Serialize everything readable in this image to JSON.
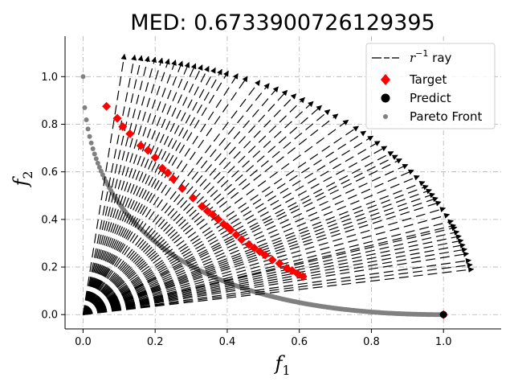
{
  "chart_data": {
    "type": "scatter",
    "title": "MED: 0.6733900726129395",
    "xlabel": "f",
    "xlabel_sub": "1",
    "ylabel": "f",
    "ylabel_sub": "2",
    "xlim": [
      -0.05,
      1.16
    ],
    "ylim": [
      -0.06,
      1.17
    ],
    "xticks": [
      "0.0",
      "0.2",
      "0.4",
      "0.6",
      "0.8",
      "1.0"
    ],
    "yticks": [
      "0.0",
      "0.2",
      "0.4",
      "0.6",
      "0.8",
      "1.0"
    ],
    "xtick_values": [
      0.0,
      0.2,
      0.4,
      0.6,
      0.8,
      1.0
    ],
    "ytick_values": [
      0.0,
      0.2,
      0.4,
      0.6,
      0.8,
      1.0
    ],
    "grid": true,
    "legend_position": "top-right",
    "legend": [
      {
        "label_main": "r",
        "label_sup": "−1",
        "label_rest": " ray",
        "marker": "line"
      },
      {
        "label": "Target",
        "marker": "diamond",
        "color": "#ff0000"
      },
      {
        "label": "Predict",
        "marker": "circle",
        "color": "#000000"
      },
      {
        "label": "Pareto Front",
        "marker": "small-circle",
        "color": "#808080"
      }
    ],
    "colors": {
      "target": "#ff0000",
      "predict": "#000000",
      "pareto": "#808080",
      "ray": "#000000",
      "grid": "#b0b0b0"
    },
    "ray_angles_deg": [
      84,
      82.5,
      81.5,
      80.5,
      79.5,
      78.5,
      77.5,
      76.5,
      75.5,
      74.5,
      73.5,
      72.5,
      71.5,
      70.5,
      69.5,
      68.5,
      67,
      65.5,
      63.5,
      62,
      60.5,
      59,
      57.5,
      56,
      54.5,
      53,
      51.5,
      50,
      48,
      46,
      44.5,
      43,
      41.5,
      40,
      38.5,
      37.5,
      36.5,
      35,
      33.5,
      32,
      30.5,
      29.5,
      28.5,
      27.5,
      26.5,
      25.5,
      24,
      22.5,
      21,
      20,
      19.5,
      18.5,
      17.5,
      16.5,
      15.5,
      14.5,
      13.5,
      12,
      11,
      10
    ],
    "ray_length": 1.1,
    "target_points": [
      {
        "x": 0.065,
        "y": 0.875
      },
      {
        "x": 0.095,
        "y": 0.825
      },
      {
        "x": 0.11,
        "y": 0.79
      },
      {
        "x": 0.13,
        "y": 0.76
      },
      {
        "x": 0.16,
        "y": 0.71
      },
      {
        "x": 0.18,
        "y": 0.69
      },
      {
        "x": 0.2,
        "y": 0.66
      },
      {
        "x": 0.22,
        "y": 0.615
      },
      {
        "x": 0.235,
        "y": 0.595
      },
      {
        "x": 0.25,
        "y": 0.57
      },
      {
        "x": 0.275,
        "y": 0.53
      },
      {
        "x": 0.305,
        "y": 0.49
      },
      {
        "x": 0.33,
        "y": 0.455
      },
      {
        "x": 0.345,
        "y": 0.435
      },
      {
        "x": 0.36,
        "y": 0.42
      },
      {
        "x": 0.375,
        "y": 0.4
      },
      {
        "x": 0.39,
        "y": 0.38
      },
      {
        "x": 0.4,
        "y": 0.37
      },
      {
        "x": 0.41,
        "y": 0.355
      },
      {
        "x": 0.425,
        "y": 0.335
      },
      {
        "x": 0.44,
        "y": 0.315
      },
      {
        "x": 0.46,
        "y": 0.295
      },
      {
        "x": 0.475,
        "y": 0.28
      },
      {
        "x": 0.49,
        "y": 0.265
      },
      {
        "x": 0.505,
        "y": 0.25
      },
      {
        "x": 0.525,
        "y": 0.23
      },
      {
        "x": 0.545,
        "y": 0.215
      },
      {
        "x": 0.565,
        "y": 0.195
      },
      {
        "x": 0.58,
        "y": 0.185
      },
      {
        "x": 0.595,
        "y": 0.172
      },
      {
        "x": 0.61,
        "y": 0.16
      },
      {
        "x": 1.0,
        "y": 0.0
      }
    ],
    "predict_points": [
      {
        "x": 1.0,
        "y": 0.0
      }
    ],
    "pareto_front": {
      "equation": "f2 = (1 - sqrt(f1))^2",
      "x_range": [
        0,
        1
      ]
    }
  }
}
